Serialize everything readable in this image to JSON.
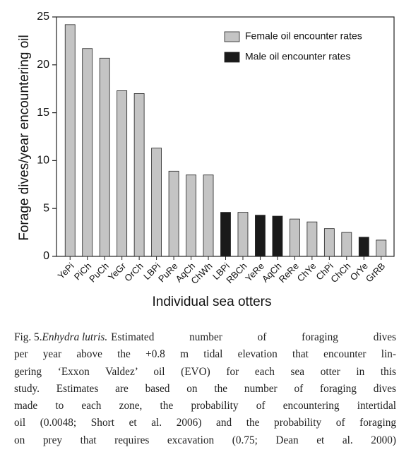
{
  "chart_data": {
    "type": "bar",
    "ylabel": "Forage dives/year encountering oil",
    "xlabel": "Individual sea otters",
    "categories": [
      "YePi",
      "PiCh",
      "PuCh",
      "YeGr",
      "OrCh",
      "LBPi",
      "PuRe",
      "AqCh",
      "ChWh",
      "LBPi",
      "RBCh",
      "YeRe",
      "AqCh",
      "ReRe",
      "ChYe",
      "ChPi",
      "ChCh",
      "OrYe",
      "GrRB"
    ],
    "series": [
      {
        "name": "Female oil encounter rates",
        "color": "#c4c4c4",
        "values": [
          24.2,
          21.7,
          20.7,
          17.3,
          17.0,
          11.3,
          8.9,
          8.5,
          8.5,
          null,
          4.6,
          null,
          null,
          3.9,
          3.6,
          2.9,
          2.5,
          null,
          1.7
        ]
      },
      {
        "name": "Male oil encounter rates",
        "color": "#1a1a1a",
        "values": [
          null,
          null,
          null,
          null,
          null,
          null,
          null,
          null,
          null,
          4.6,
          null,
          4.3,
          4.2,
          null,
          null,
          null,
          null,
          2.0,
          null
        ]
      }
    ],
    "ylim": [
      0,
      25
    ],
    "yticks": [
      0,
      5,
      10,
      15,
      20,
      25
    ],
    "grid": false,
    "legend": "upper right"
  },
  "caption": {
    "label": "Fig. 5.",
    "species": "Enhydra lutris.",
    "first_line_rest": "Estimated number of foraging dives",
    "lines": [
      "per year above the +0.8 m tidal elevation that encounter lin-",
      "gering ‘Exxon Valdez’ oil (EVO) for each sea otter in this",
      "study. Estimates are based on the number of foraging dives",
      "made to each zone, the probability of encountering intertidal",
      "oil (0.0048; Short et al. 2006) and the probability of foraging",
      "on prey that requires excavation (0.75; Dean et al. 2000)"
    ]
  }
}
